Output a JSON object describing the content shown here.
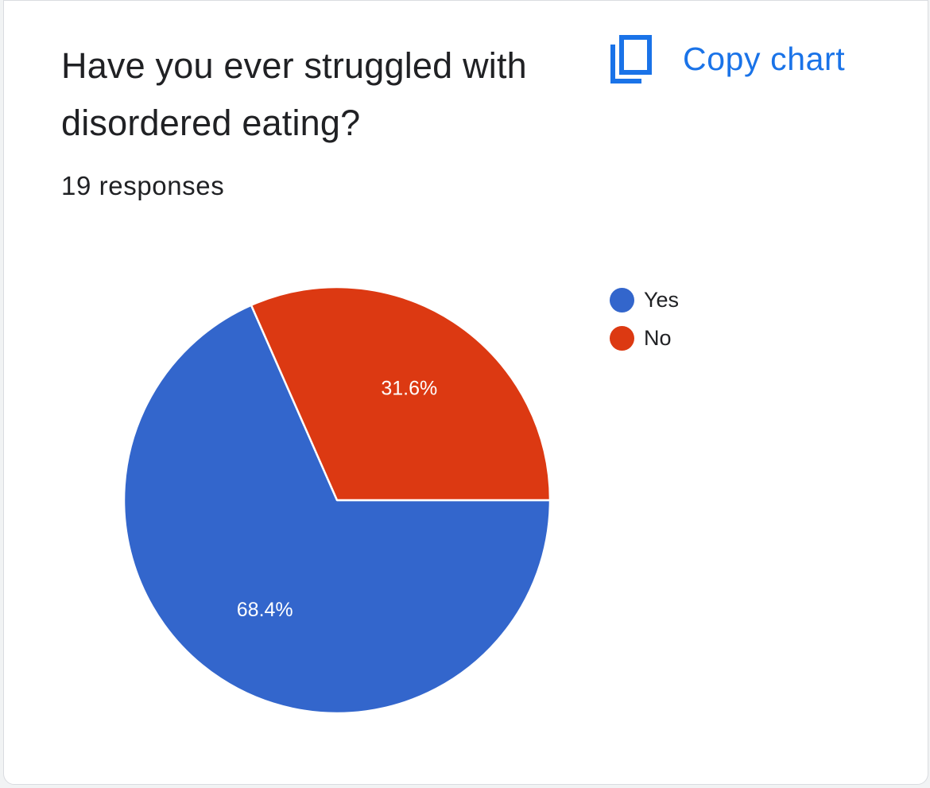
{
  "question": {
    "title": "Have you ever struggled with disordered eating?",
    "responses": "19 responses"
  },
  "toolbar": {
    "copy_label": "Copy chart",
    "copy_icon": "copy-icon"
  },
  "colors": {
    "accent": "#1a73e8",
    "yes": "#3366cc",
    "no": "#dc3912"
  },
  "chart_data": {
    "type": "pie",
    "categories": [
      "Yes",
      "No"
    ],
    "values": [
      68.4,
      31.6
    ],
    "labels": [
      "68.4%",
      "31.6%"
    ],
    "colors": [
      "#3366cc",
      "#dc3912"
    ],
    "legend_position": "right"
  }
}
